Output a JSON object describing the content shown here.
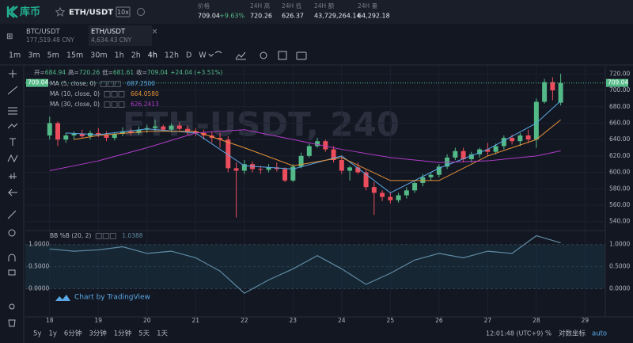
{
  "header": {
    "logo": "库币",
    "pair": "ETH/USDT",
    "leverage": "10x",
    "stats": [
      {
        "label": "价格",
        "value": "709.04",
        "change": "+9.63%"
      },
      {
        "label": "24H 高",
        "value": "720.26"
      },
      {
        "label": "24H 低",
        "value": "626.37"
      },
      {
        "label": "24H 额",
        "value": "43,729,264.14"
      },
      {
        "label": "24H 量",
        "value": "64,292.18"
      }
    ]
  },
  "tabs": [
    {
      "pair": "BTC/USDT",
      "price": "177,519.48 CNY"
    },
    {
      "pair": "ETH/USDT",
      "price": "4,634.43 CNY"
    }
  ],
  "active_tab": 1,
  "intervals": [
    "1m",
    "3m",
    "5m",
    "15m",
    "30m",
    "1h",
    "2h",
    "4h",
    "12h",
    "D",
    "W"
  ],
  "active_interval": 7,
  "chart_data": {
    "type": "candlestick",
    "watermark": "ETH-USDT, 240",
    "legend": {
      "items": [
        {
          "label": "开=",
          "value": "684.94"
        },
        {
          "label": "高=",
          "value": "720.26"
        },
        {
          "label": "低=",
          "value": "681.61"
        },
        {
          "label": "收=",
          "value": "709.04"
        }
      ],
      "change": "+24.04 (+3.51%)"
    },
    "up_color": "#53b987",
    "down_color": "#eb4d5c",
    "candles": {
      "open": [
        645,
        660,
        640,
        645,
        647,
        644,
        648,
        646,
        642,
        647,
        650,
        648,
        652,
        654,
        656,
        652,
        657,
        653,
        650,
        648,
        645,
        642,
        640,
        605,
        602,
        610,
        604,
        603,
        606,
        604,
        590,
        607,
        620,
        632,
        638,
        628,
        615,
        602,
        606,
        600,
        582,
        575,
        570,
        566,
        572,
        578,
        587,
        594,
        597,
        607,
        618,
        626,
        616,
        622,
        628,
        625,
        632,
        642,
        638,
        645,
        640,
        686,
        710,
        684.94
      ],
      "high": [
        668,
        662,
        648,
        650,
        652,
        651,
        654,
        650,
        649,
        655,
        653,
        656,
        658,
        664,
        658,
        660,
        661,
        657,
        654,
        652,
        650,
        648,
        644,
        612,
        615,
        613,
        608,
        610,
        612,
        606,
        610,
        624,
        635,
        642,
        640,
        632,
        620,
        608,
        612,
        603,
        588,
        578,
        576,
        575,
        582,
        590,
        598,
        600,
        610,
        622,
        630,
        630,
        625,
        630,
        636,
        635,
        645,
        646,
        648,
        652,
        690,
        714,
        716,
        720.26
      ],
      "low": [
        640,
        632,
        636,
        640,
        642,
        640,
        643,
        638,
        639,
        644,
        645,
        646,
        648,
        650,
        650,
        649,
        651,
        646,
        644,
        640,
        636,
        630,
        600,
        545,
        598,
        600,
        598,
        600,
        601,
        588,
        588,
        605,
        618,
        630,
        625,
        612,
        598,
        590,
        598,
        578,
        548,
        565,
        562,
        563,
        568,
        575,
        583,
        590,
        594,
        604,
        615,
        612,
        612,
        618,
        620,
        622,
        628,
        634,
        632,
        636,
        630,
        684,
        688,
        681.61
      ],
      "close": [
        660,
        640,
        645,
        647,
        644,
        648,
        646,
        642,
        647,
        650,
        648,
        652,
        654,
        656,
        652,
        657,
        653,
        650,
        648,
        645,
        642,
        640,
        605,
        602,
        610,
        604,
        603,
        606,
        604,
        590,
        607,
        620,
        632,
        638,
        628,
        615,
        602,
        606,
        600,
        582,
        575,
        570,
        566,
        572,
        578,
        587,
        594,
        597,
        607,
        618,
        626,
        616,
        622,
        628,
        625,
        632,
        642,
        638,
        645,
        640,
        686,
        710,
        700,
        709.04
      ]
    },
    "xticks": [
      {
        "value": 0,
        "label": "18"
      },
      {
        "value": 6,
        "label": "19"
      },
      {
        "value": 12,
        "label": "20"
      },
      {
        "value": 18,
        "label": "21"
      },
      {
        "value": 24,
        "label": "22"
      },
      {
        "value": 30,
        "label": "23"
      },
      {
        "value": 36,
        "label": "24"
      },
      {
        "value": 42,
        "label": "25"
      },
      {
        "value": 48,
        "label": "26"
      },
      {
        "value": 54,
        "label": "27"
      },
      {
        "value": 60,
        "label": "28"
      },
      {
        "value": 66,
        "label": "29"
      }
    ],
    "xlim": [
      -3,
      68.5
    ],
    "ylim": [
      530,
      730
    ],
    "yticks": [
      {
        "value": 540,
        "label": "540.00"
      },
      {
        "value": 560,
        "label": "560.00"
      },
      {
        "value": 580,
        "label": "580.00"
      },
      {
        "value": 600,
        "label": "600.00"
      },
      {
        "value": 620,
        "label": "620.00"
      },
      {
        "value": 640,
        "label": "640.00"
      },
      {
        "value": 660,
        "label": "660.00"
      },
      {
        "value": 680,
        "label": "680.00"
      },
      {
        "value": 700,
        "label": "700.00"
      },
      {
        "value": 720,
        "label": "720.00"
      }
    ],
    "last_price": {
      "value": 709.04,
      "label": "709.04"
    },
    "indicators": [
      {
        "name": "MA (5, close, 0)",
        "value": "687.2500",
        "color": "#5aa9e6",
        "x": [
          2,
          6,
          12,
          18,
          24,
          30,
          36,
          42,
          48,
          54,
          60,
          63
        ],
        "values": [
          648,
          646,
          653,
          648,
          608,
          604,
          620,
          575,
          605,
          628,
          660,
          687.25
        ]
      },
      {
        "name": "MA (10, close, 0)",
        "value": "664.0580",
        "color": "#e69138",
        "x": [
          3,
          6,
          12,
          18,
          24,
          30,
          36,
          42,
          48,
          54,
          60,
          63
        ],
        "values": [
          640,
          645,
          650,
          650,
          630,
          608,
          618,
          590,
          590,
          620,
          640,
          664.058
        ]
      },
      {
        "name": "MA (30, close, 0)",
        "value": "626.2413",
        "color": "#b03cc8",
        "x": [
          0,
          6,
          12,
          18,
          24,
          30,
          36,
          42,
          48,
          54,
          60,
          63
        ],
        "values": [
          602,
          614,
          630,
          648,
          652,
          640,
          628,
          618,
          612,
          614,
          620,
          626.2413
        ]
      }
    ],
    "subchart": {
      "type": "line",
      "name": "BB %B (20, 2)",
      "value": "1.0388",
      "color": "#5f8aa3",
      "x": [
        0,
        3,
        6,
        9,
        12,
        15,
        18,
        21,
        24,
        27,
        30,
        33,
        36,
        39,
        42,
        45,
        48,
        51,
        54,
        57,
        60,
        63
      ],
      "values": [
        0.9,
        0.85,
        0.88,
        0.95,
        0.8,
        0.85,
        0.7,
        0.4,
        -0.1,
        0.2,
        0.45,
        0.75,
        0.45,
        0.1,
        0.35,
        0.65,
        0.8,
        0.7,
        0.85,
        0.8,
        1.2,
        1.0388
      ],
      "ylim": [
        -0.6,
        1.3
      ],
      "yticks": [
        {
          "value": 0,
          "label": "0.0000"
        },
        {
          "value": 0.5,
          "label": "0.5000"
        },
        {
          "value": 1,
          "label": "1.0000"
        }
      ]
    },
    "credit": "Chart by TradingView"
  },
  "bottom": {
    "ranges": [
      "5y",
      "1y",
      "6分钟",
      "3分钟",
      "1分钟",
      "5天",
      "1天"
    ],
    "time": "12:01:48 (UTC+9)",
    "percent": "%",
    "log": "对数坐标",
    "auto": "auto"
  }
}
